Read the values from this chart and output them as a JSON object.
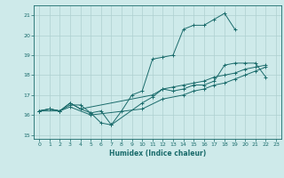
{
  "title": "",
  "xlabel": "Humidex (Indice chaleur)",
  "xlim": [
    -0.5,
    23.5
  ],
  "ylim": [
    14.8,
    21.5
  ],
  "yticks": [
    15,
    16,
    17,
    18,
    19,
    20,
    21
  ],
  "xticks": [
    0,
    1,
    2,
    3,
    4,
    5,
    6,
    7,
    8,
    9,
    10,
    11,
    12,
    13,
    14,
    15,
    16,
    17,
    18,
    19,
    20,
    21,
    22,
    23
  ],
  "background_color": "#ceeaea",
  "grid_color": "#aed0d0",
  "line_color": "#1a6b6b",
  "line1_x": [
    0,
    1,
    2,
    3,
    4,
    5,
    6,
    7,
    8,
    9,
    10,
    11,
    12,
    13,
    14,
    15,
    16,
    17,
    18,
    19
  ],
  "line1_y": [
    16.2,
    16.3,
    16.2,
    16.5,
    16.5,
    16.1,
    15.6,
    15.5,
    16.2,
    17.0,
    17.2,
    18.8,
    18.9,
    19.0,
    20.3,
    20.5,
    20.5,
    20.8,
    21.1,
    20.3
  ],
  "line2_x": [
    0,
    1,
    2,
    3,
    4,
    5,
    6,
    7,
    10,
    11,
    12,
    13,
    14,
    15,
    16,
    17,
    18,
    19,
    20,
    21,
    22
  ],
  "line2_y": [
    16.2,
    16.3,
    16.2,
    16.6,
    16.3,
    16.1,
    16.2,
    15.5,
    16.6,
    16.9,
    17.3,
    17.2,
    17.3,
    17.5,
    17.5,
    17.7,
    18.5,
    18.6,
    18.6,
    18.6,
    17.9
  ],
  "line3_x": [
    0,
    2,
    3,
    5,
    10,
    12,
    14,
    15,
    16,
    17,
    18,
    19,
    20,
    21,
    22
  ],
  "line3_y": [
    16.2,
    16.2,
    16.4,
    16.0,
    16.3,
    16.8,
    17.0,
    17.2,
    17.3,
    17.5,
    17.6,
    17.8,
    18.0,
    18.2,
    18.4
  ],
  "line4_x": [
    0,
    1,
    2,
    3,
    4,
    11,
    12,
    13,
    14,
    15,
    16,
    17,
    18,
    19,
    20,
    21,
    22
  ],
  "line4_y": [
    16.2,
    16.3,
    16.2,
    16.6,
    16.3,
    17.0,
    17.3,
    17.4,
    17.5,
    17.6,
    17.7,
    17.9,
    18.0,
    18.1,
    18.3,
    18.4,
    18.5
  ]
}
